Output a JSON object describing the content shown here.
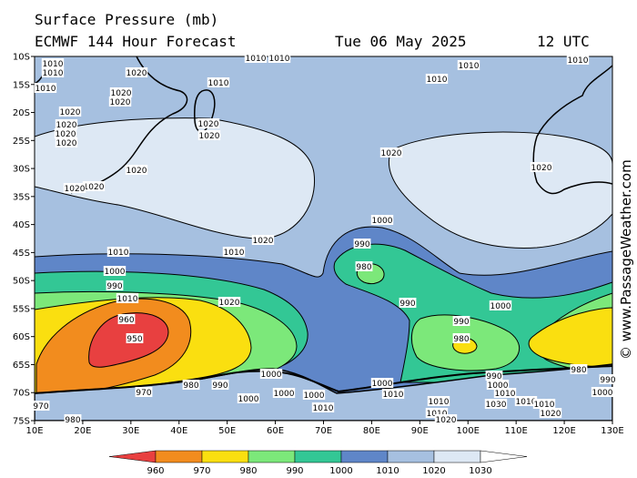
{
  "header": {
    "line1": "Surface Pressure (mb)",
    "line2": "ECMWF 144 Hour Forecast",
    "date": "Tue 06 May 2025",
    "time": "12 UTC"
  },
  "copyright": "© www.PassageWeather.com",
  "axes": {
    "lat_labels": [
      "10S",
      "15S",
      "20S",
      "25S",
      "30S",
      "35S",
      "40S",
      "45S",
      "50S",
      "55S",
      "60S",
      "65S",
      "70S",
      "75S"
    ],
    "lon_labels": [
      "10E",
      "20E",
      "30E",
      "40E",
      "50E",
      "60E",
      "70E",
      "80E",
      "90E",
      "100E",
      "110E",
      "120E",
      "130E"
    ]
  },
  "colorbar": {
    "colors": [
      "#e84040",
      "#f28c1e",
      "#fadf10",
      "#7ce87a",
      "#33c795",
      "#5f86c8",
      "#a6c0e0",
      "#dde8f4",
      "#ffffff"
    ],
    "ticks": [
      "960",
      "970",
      "980",
      "990",
      "1000",
      "1010",
      "1020",
      "1030"
    ]
  },
  "isobar_labels": [
    {
      "text": "1010"
    },
    {
      "text": "1010"
    },
    {
      "text": "1010"
    },
    {
      "text": "1020"
    },
    {
      "text": "1020"
    },
    {
      "text": "1020"
    },
    {
      "text": "1010"
    },
    {
      "text": "1020"
    },
    {
      "text": "1020"
    },
    {
      "text": "1020"
    },
    {
      "text": "1020"
    },
    {
      "text": "1020"
    },
    {
      "text": "1020"
    },
    {
      "text": "1020"
    },
    {
      "text": "1020"
    },
    {
      "text": "1010"
    },
    {
      "text": "1010"
    },
    {
      "text": "1010"
    },
    {
      "text": "1010"
    },
    {
      "text": "1010"
    },
    {
      "text": "1020"
    },
    {
      "text": "1020"
    },
    {
      "text": "1020"
    },
    {
      "text": "1020"
    },
    {
      "text": "1010"
    },
    {
      "text": "1010"
    },
    {
      "text": "1000"
    },
    {
      "text": "990"
    },
    {
      "text": "1010"
    },
    {
      "text": "1020"
    },
    {
      "text": "1000"
    },
    {
      "text": "990"
    },
    {
      "text": "980"
    },
    {
      "text": "990"
    },
    {
      "text": "960"
    },
    {
      "text": "950"
    },
    {
      "text": "1000"
    },
    {
      "text": "990"
    },
    {
      "text": "980"
    },
    {
      "text": "1000"
    },
    {
      "text": "970"
    },
    {
      "text": "980"
    },
    {
      "text": "990"
    },
    {
      "text": "1000"
    },
    {
      "text": "1000"
    },
    {
      "text": "1000"
    },
    {
      "text": "1010"
    },
    {
      "text": "1000"
    },
    {
      "text": "990"
    },
    {
      "text": "1000"
    },
    {
      "text": "1010"
    },
    {
      "text": "1010"
    },
    {
      "text": "1010"
    },
    {
      "text": "980"
    },
    {
      "text": "970"
    },
    {
      "text": "980"
    },
    {
      "text": "1010"
    },
    {
      "text": "1020"
    },
    {
      "text": "1030"
    },
    {
      "text": "1010"
    },
    {
      "text": "1020"
    },
    {
      "text": "1010"
    },
    {
      "text": "1000"
    },
    {
      "text": "990"
    }
  ]
}
